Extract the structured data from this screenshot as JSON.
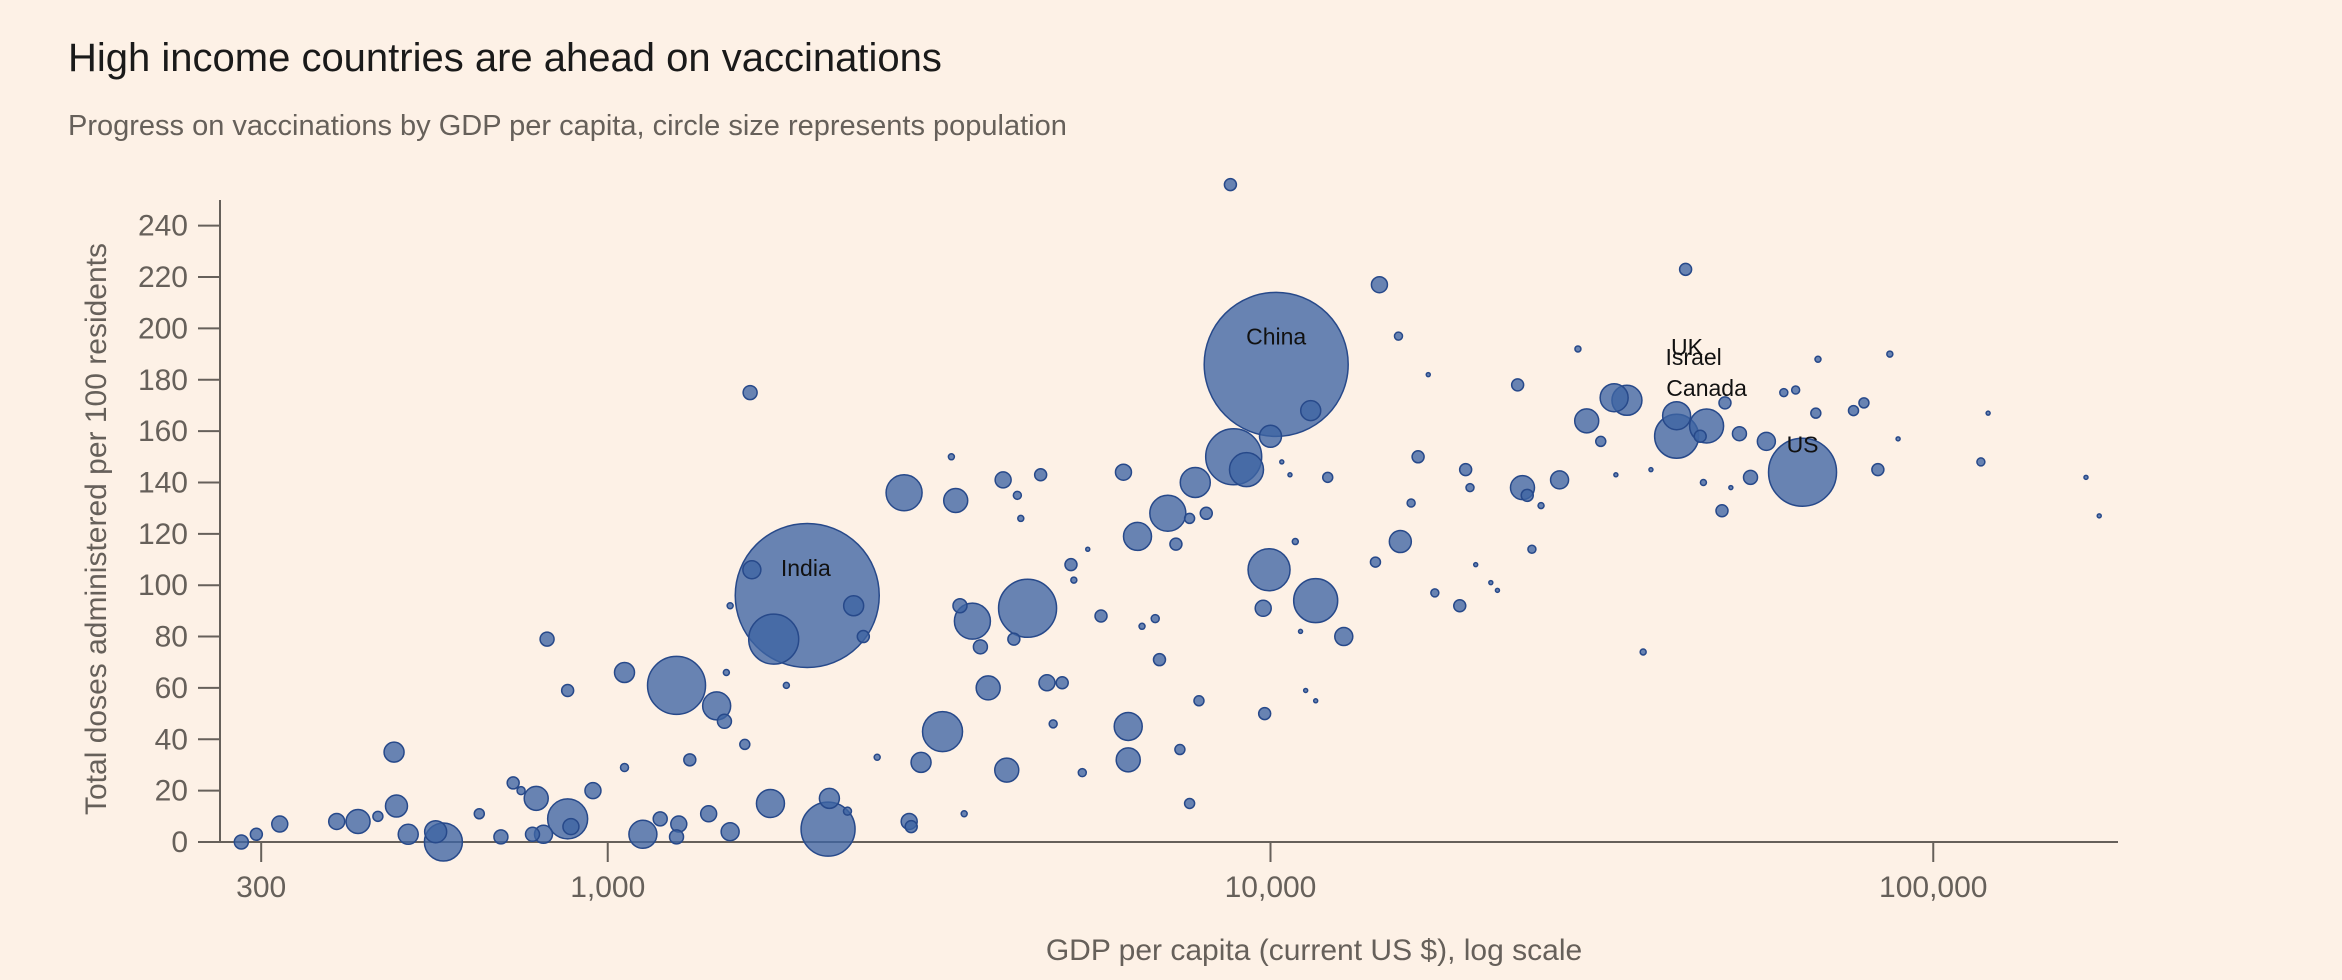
{
  "header": {
    "title": "High income countries are ahead on vaccinations",
    "subtitle": "Progress on vaccinations by GDP per capita, circle size represents population"
  },
  "colors": {
    "background": "#FDF1E6",
    "bubble_fill": "#3E64A3",
    "bubble_stroke": "#27498A",
    "axis": "#66605a",
    "text": "#1a1a1a"
  },
  "chart_data": {
    "type": "scatter",
    "title": "High income countries are ahead on vaccinations",
    "subtitle": "Progress on vaccinations by GDP per capita, circle size represents population",
    "xlabel": "GDP per capita (current US $), log scale",
    "ylabel": "Total doses administered per 100 residents",
    "x_scale": "log",
    "xlim": [
      260,
      190000
    ],
    "ylim": [
      0,
      250
    ],
    "x_ticks": [
      {
        "value": 300,
        "label": "300"
      },
      {
        "value": 1000,
        "label": "1,000"
      },
      {
        "value": 10000,
        "label": "10,000"
      },
      {
        "value": 100000,
        "label": "100,000"
      }
    ],
    "y_ticks": [
      {
        "value": 0,
        "label": "0"
      },
      {
        "value": 20,
        "label": "20"
      },
      {
        "value": 40,
        "label": "40"
      },
      {
        "value": 60,
        "label": "60"
      },
      {
        "value": 80,
        "label": "80"
      },
      {
        "value": 100,
        "label": "100"
      },
      {
        "value": 120,
        "label": "120"
      },
      {
        "value": 140,
        "label": "140"
      },
      {
        "value": 160,
        "label": "160"
      },
      {
        "value": 180,
        "label": "180"
      },
      {
        "value": 200,
        "label": "200"
      },
      {
        "value": 220,
        "label": "220"
      },
      {
        "value": 240,
        "label": "240"
      }
    ],
    "size_encoding": "population",
    "annotations": [
      {
        "label": "China",
        "x": 10200,
        "y": 196
      },
      {
        "label": "India",
        "x": 1990,
        "y": 106
      },
      {
        "label": "UK",
        "x": 42500,
        "y": 192
      },
      {
        "label": "Israel",
        "x": 43500,
        "y": 188
      },
      {
        "label": "Canada",
        "x": 45500,
        "y": 176
      },
      {
        "label": "US",
        "x": 63500,
        "y": 154
      }
    ],
    "points": [
      {
        "x": 10200,
        "y": 186,
        "r": 72
      },
      {
        "x": 2000,
        "y": 96,
        "r": 72
      },
      {
        "x": 63500,
        "y": 144,
        "r": 34
      },
      {
        "x": 1270,
        "y": 61,
        "r": 29
      },
      {
        "x": 4300,
        "y": 91,
        "r": 29
      },
      {
        "x": 8800,
        "y": 150,
        "r": 28
      },
      {
        "x": 2150,
        "y": 5,
        "r": 27
      },
      {
        "x": 1780,
        "y": 79,
        "r": 25
      },
      {
        "x": 41000,
        "y": 158,
        "r": 22
      },
      {
        "x": 11700,
        "y": 94,
        "r": 22
      },
      {
        "x": 9950,
        "y": 106,
        "r": 21
      },
      {
        "x": 3200,
        "y": 43,
        "r": 20
      },
      {
        "x": 565,
        "y": 0,
        "r": 19
      },
      {
        "x": 7000,
        "y": 128,
        "r": 18
      },
      {
        "x": 870,
        "y": 9,
        "r": 20
      },
      {
        "x": 2800,
        "y": 136,
        "r": 18
      },
      {
        "x": 9200,
        "y": 145,
        "r": 17
      },
      {
        "x": 3550,
        "y": 86,
        "r": 18
      },
      {
        "x": 45500,
        "y": 162,
        "r": 17
      },
      {
        "x": 33000,
        "y": 173,
        "r": 14
      },
      {
        "x": 34500,
        "y": 172,
        "r": 15
      },
      {
        "x": 7700,
        "y": 140,
        "r": 15
      },
      {
        "x": 1460,
        "y": 53,
        "r": 14
      },
      {
        "x": 1130,
        "y": 3,
        "r": 14
      },
      {
        "x": 6100,
        "y": 45,
        "r": 14
      },
      {
        "x": 6300,
        "y": 119,
        "r": 14
      },
      {
        "x": 41000,
        "y": 166,
        "r": 14
      },
      {
        "x": 3750,
        "y": 60,
        "r": 12
      },
      {
        "x": 1760,
        "y": 15,
        "r": 14
      },
      {
        "x": 30000,
        "y": 164,
        "r": 12
      },
      {
        "x": 6100,
        "y": 32,
        "r": 12
      },
      {
        "x": 4000,
        "y": 28,
        "r": 12
      },
      {
        "x": 2350,
        "y": 92,
        "r": 10
      },
      {
        "x": 3350,
        "y": 133,
        "r": 12
      },
      {
        "x": 24000,
        "y": 138,
        "r": 12
      },
      {
        "x": 15700,
        "y": 117,
        "r": 11
      },
      {
        "x": 11500,
        "y": 168,
        "r": 10
      },
      {
        "x": 10000,
        "y": 158,
        "r": 11
      },
      {
        "x": 12900,
        "y": 80,
        "r": 9
      },
      {
        "x": 2970,
        "y": 31,
        "r": 10
      },
      {
        "x": 420,
        "y": 8,
        "r": 12
      },
      {
        "x": 480,
        "y": 14,
        "r": 11
      },
      {
        "x": 1060,
        "y": 66,
        "r": 10
      },
      {
        "x": 780,
        "y": 17,
        "r": 12
      },
      {
        "x": 550,
        "y": 4,
        "r": 11
      },
      {
        "x": 500,
        "y": 3,
        "r": 10
      },
      {
        "x": 2160,
        "y": 17,
        "r": 10
      },
      {
        "x": 1530,
        "y": 4,
        "r": 9
      },
      {
        "x": 1650,
        "y": 106,
        "r": 9
      },
      {
        "x": 476,
        "y": 35,
        "r": 10
      },
      {
        "x": 56000,
        "y": 156,
        "r": 9
      },
      {
        "x": 27300,
        "y": 141,
        "r": 9
      },
      {
        "x": 14600,
        "y": 217,
        "r": 8
      },
      {
        "x": 4600,
        "y": 62,
        "r": 8
      },
      {
        "x": 3950,
        "y": 141,
        "r": 8
      },
      {
        "x": 6000,
        "y": 144,
        "r": 8
      },
      {
        "x": 19700,
        "y": 145,
        "r": 6
      },
      {
        "x": 24400,
        "y": 135,
        "r": 6
      },
      {
        "x": 950,
        "y": 20,
        "r": 8
      },
      {
        "x": 800,
        "y": 3,
        "r": 9
      },
      {
        "x": 390,
        "y": 8,
        "r": 8
      },
      {
        "x": 1280,
        "y": 7,
        "r": 8
      },
      {
        "x": 1270,
        "y": 2,
        "r": 7
      },
      {
        "x": 1420,
        "y": 11,
        "r": 8
      },
      {
        "x": 2850,
        "y": 8,
        "r": 8
      },
      {
        "x": 1200,
        "y": 9,
        "r": 7
      },
      {
        "x": 880,
        "y": 6,
        "r": 8
      },
      {
        "x": 690,
        "y": 2,
        "r": 7
      },
      {
        "x": 770,
        "y": 3,
        "r": 7
      },
      {
        "x": 1500,
        "y": 47,
        "r": 7
      },
      {
        "x": 3400,
        "y": 92,
        "r": 7
      },
      {
        "x": 3650,
        "y": 76,
        "r": 7
      },
      {
        "x": 4100,
        "y": 79,
        "r": 6
      },
      {
        "x": 2430,
        "y": 80,
        "r": 6
      },
      {
        "x": 810,
        "y": 79,
        "r": 7
      },
      {
        "x": 1640,
        "y": 175,
        "r": 7
      },
      {
        "x": 19300,
        "y": 92,
        "r": 6
      },
      {
        "x": 42300,
        "y": 223,
        "r": 6
      },
      {
        "x": 8700,
        "y": 256,
        "r": 6
      },
      {
        "x": 9750,
        "y": 91,
        "r": 8
      },
      {
        "x": 9800,
        "y": 50,
        "r": 6
      },
      {
        "x": 6800,
        "y": 71,
        "r": 6
      },
      {
        "x": 5550,
        "y": 88,
        "r": 6
      },
      {
        "x": 5000,
        "y": 108,
        "r": 6
      },
      {
        "x": 7200,
        "y": 116,
        "r": 6
      },
      {
        "x": 7800,
        "y": 55,
        "r": 5
      },
      {
        "x": 8000,
        "y": 128,
        "r": 6
      },
      {
        "x": 7550,
        "y": 126,
        "r": 5
      },
      {
        "x": 16700,
        "y": 150,
        "r": 6
      },
      {
        "x": 12200,
        "y": 142,
        "r": 5
      },
      {
        "x": 51000,
        "y": 159,
        "r": 7
      },
      {
        "x": 53000,
        "y": 142,
        "r": 7
      },
      {
        "x": 48000,
        "y": 129,
        "r": 6
      },
      {
        "x": 48500,
        "y": 171,
        "r": 6
      },
      {
        "x": 44500,
        "y": 158,
        "r": 6
      },
      {
        "x": 31500,
        "y": 156,
        "r": 5
      },
      {
        "x": 23600,
        "y": 178,
        "r": 6
      },
      {
        "x": 82500,
        "y": 145,
        "r": 6
      },
      {
        "x": 59500,
        "y": 175,
        "r": 4
      },
      {
        "x": 62000,
        "y": 176,
        "r": 4
      },
      {
        "x": 66500,
        "y": 167,
        "r": 5
      },
      {
        "x": 75800,
        "y": 168,
        "r": 5
      },
      {
        "x": 78600,
        "y": 171,
        "r": 5
      },
      {
        "x": 4850,
        "y": 62,
        "r": 6
      },
      {
        "x": 4500,
        "y": 143,
        "r": 6
      },
      {
        "x": 2870,
        "y": 6,
        "r": 6
      },
      {
        "x": 1330,
        "y": 32,
        "r": 6
      },
      {
        "x": 720,
        "y": 23,
        "r": 6
      },
      {
        "x": 870,
        "y": 59,
        "r": 6
      },
      {
        "x": 740,
        "y": 20,
        "r": 4
      },
      {
        "x": 450,
        "y": 10,
        "r": 5
      },
      {
        "x": 640,
        "y": 11,
        "r": 5
      },
      {
        "x": 320,
        "y": 7,
        "r": 8
      },
      {
        "x": 280,
        "y": 0,
        "r": 7
      },
      {
        "x": 295,
        "y": 3,
        "r": 6
      },
      {
        "x": 15600,
        "y": 197,
        "r": 4
      },
      {
        "x": 16300,
        "y": 132,
        "r": 4
      },
      {
        "x": 14400,
        "y": 109,
        "r": 5
      },
      {
        "x": 17700,
        "y": 97,
        "r": 4
      },
      {
        "x": 20000,
        "y": 138,
        "r": 4
      },
      {
        "x": 24800,
        "y": 114,
        "r": 4
      },
      {
        "x": 29100,
        "y": 192,
        "r": 3
      },
      {
        "x": 33200,
        "y": 143,
        "r": 2
      },
      {
        "x": 36500,
        "y": 74,
        "r": 3
      },
      {
        "x": 45000,
        "y": 140,
        "r": 3
      },
      {
        "x": 49500,
        "y": 138,
        "r": 2
      },
      {
        "x": 37500,
        "y": 145,
        "r": 2
      },
      {
        "x": 67000,
        "y": 188,
        "r": 3
      },
      {
        "x": 86000,
        "y": 190,
        "r": 3
      },
      {
        "x": 88500,
        "y": 157,
        "r": 2
      },
      {
        "x": 118000,
        "y": 148,
        "r": 4
      },
      {
        "x": 121000,
        "y": 167,
        "r": 2
      },
      {
        "x": 170000,
        "y": 142,
        "r": 2
      },
      {
        "x": 178000,
        "y": 127,
        "r": 2
      },
      {
        "x": 7550,
        "y": 15,
        "r": 5
      },
      {
        "x": 7300,
        "y": 36,
        "r": 5
      },
      {
        "x": 6700,
        "y": 87,
        "r": 4
      },
      {
        "x": 6400,
        "y": 84,
        "r": 3
      },
      {
        "x": 5200,
        "y": 27,
        "r": 4
      },
      {
        "x": 4700,
        "y": 46,
        "r": 4
      },
      {
        "x": 5050,
        "y": 102,
        "r": 3
      },
      {
        "x": 5300,
        "y": 114,
        "r": 2
      },
      {
        "x": 4200,
        "y": 126,
        "r": 3
      },
      {
        "x": 4150,
        "y": 135,
        "r": 4
      },
      {
        "x": 3300,
        "y": 150,
        "r": 3
      },
      {
        "x": 2550,
        "y": 33,
        "r": 3
      },
      {
        "x": 2300,
        "y": 12,
        "r": 4
      },
      {
        "x": 1860,
        "y": 61,
        "r": 3
      },
      {
        "x": 1530,
        "y": 92,
        "r": 3
      },
      {
        "x": 1060,
        "y": 29,
        "r": 4
      },
      {
        "x": 1510,
        "y": 66,
        "r": 3
      },
      {
        "x": 1610,
        "y": 38,
        "r": 5
      },
      {
        "x": 3450,
        "y": 11,
        "r": 3
      },
      {
        "x": 21500,
        "y": 101,
        "r": 2
      },
      {
        "x": 17300,
        "y": 182,
        "r": 2
      },
      {
        "x": 20400,
        "y": 108,
        "r": 2
      },
      {
        "x": 25600,
        "y": 131,
        "r": 3
      },
      {
        "x": 22000,
        "y": 98,
        "r": 2
      },
      {
        "x": 10900,
        "y": 117,
        "r": 3
      },
      {
        "x": 11300,
        "y": 59,
        "r": 2
      },
      {
        "x": 11100,
        "y": 82,
        "r": 2
      },
      {
        "x": 11700,
        "y": 55,
        "r": 2
      },
      {
        "x": 10700,
        "y": 143,
        "r": 2
      },
      {
        "x": 10400,
        "y": 148,
        "r": 2
      }
    ]
  }
}
